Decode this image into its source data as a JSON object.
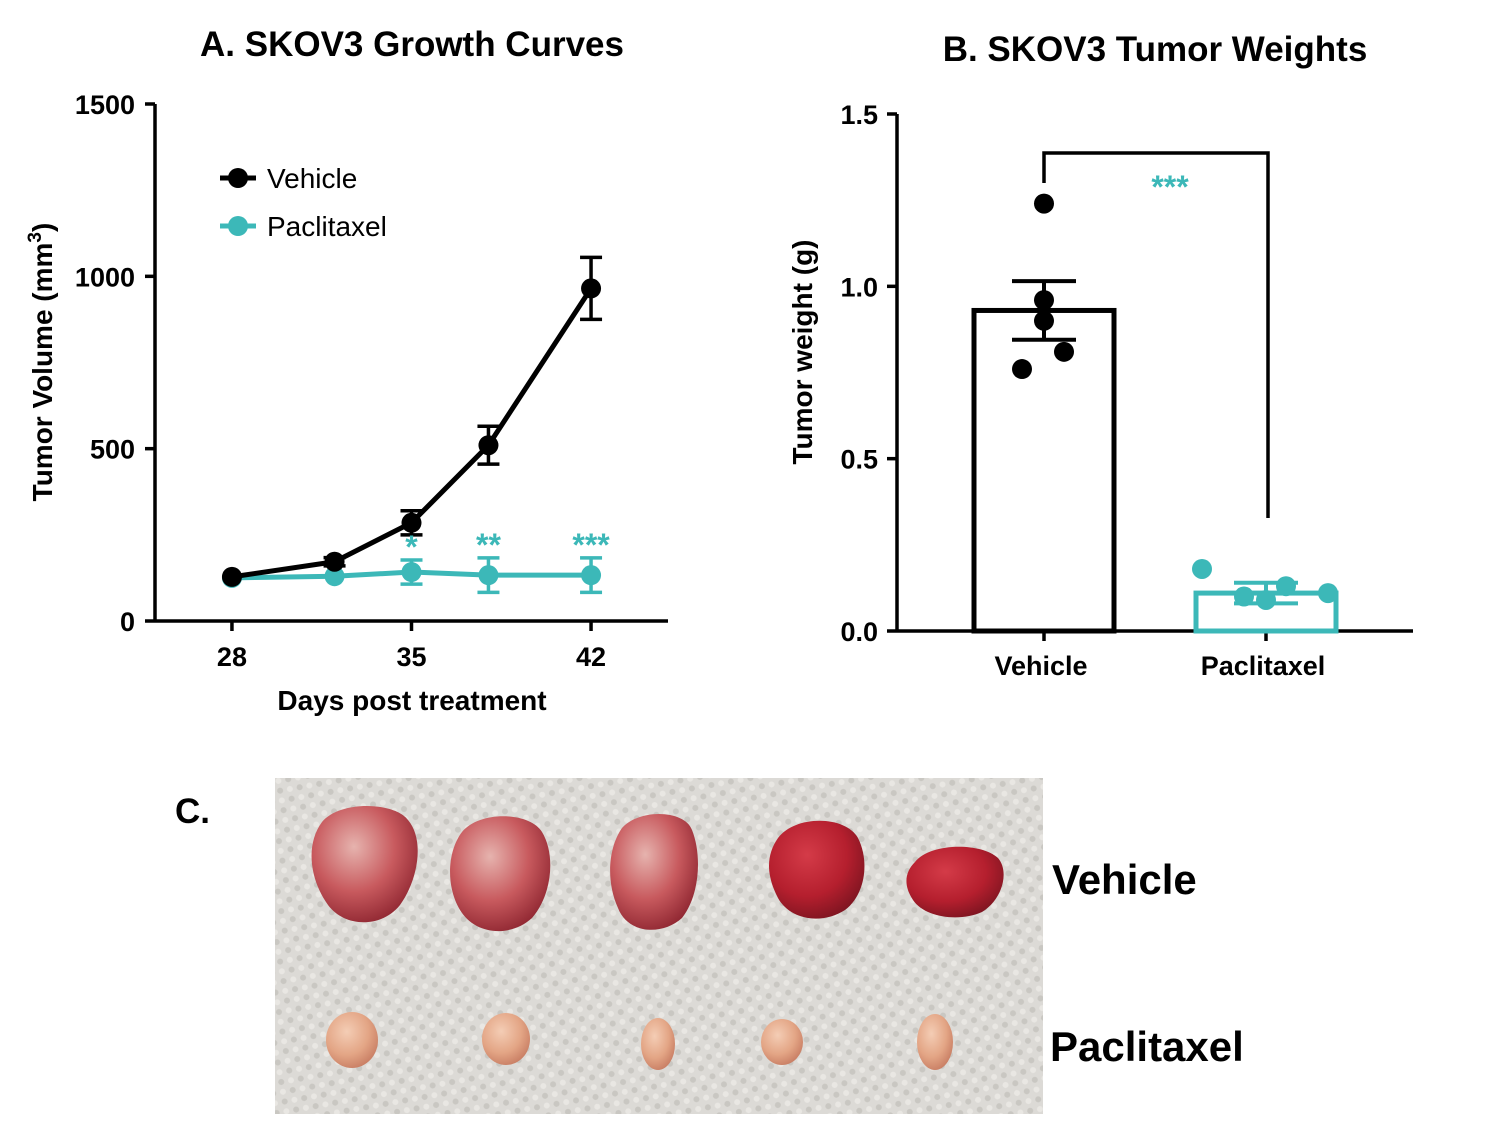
{
  "colors": {
    "vehicle": "#000000",
    "paclitaxel": "#3cb8b8",
    "towel": "#dcdad6",
    "tumor_vehicle": "#b83a44",
    "tumor_paclitaxel": "#e8a588"
  },
  "chart_data": [
    {
      "type": "line",
      "title": "A.  SKOV3 Growth Curves",
      "xlabel": "Days post treatment",
      "ylabel": "Tumor Volume (mm",
      "ylabel_sup": "3",
      "ylabel_close": ")",
      "xlim": [
        25,
        45
      ],
      "ylim": [
        0,
        1500
      ],
      "xticks": [
        28,
        35,
        42
      ],
      "yticks": [
        0,
        500,
        1000,
        1500
      ],
      "legend_position": "top-left",
      "series": [
        {
          "name": "Vehicle",
          "color": "#000000",
          "points": [
            {
              "x": 28,
              "y": 128,
              "err": 8
            },
            {
              "x": 32,
              "y": 172,
              "err": 12
            },
            {
              "x": 35,
              "y": 285,
              "err": 35
            },
            {
              "x": 38,
              "y": 510,
              "err": 55
            },
            {
              "x": 42,
              "y": 965,
              "err": 90
            }
          ]
        },
        {
          "name": "Paclitaxel",
          "color": "#3cb8b8",
          "points": [
            {
              "x": 28,
              "y": 125,
              "err": 6
            },
            {
              "x": 32,
              "y": 130,
              "err": 10
            },
            {
              "x": 35,
              "y": 142,
              "err": 35
            },
            {
              "x": 38,
              "y": 133,
              "err": 50
            },
            {
              "x": 42,
              "y": 133,
              "err": 50
            }
          ]
        }
      ],
      "significance": [
        {
          "x": 35,
          "label": "*"
        },
        {
          "x": 38,
          "label": "**"
        },
        {
          "x": 42,
          "label": "***"
        }
      ]
    },
    {
      "type": "bar",
      "title": "B.  SKOV3 Tumor Weights",
      "ylabel": "Tumor weight (g)",
      "ylim": [
        0,
        1.5
      ],
      "yticks": [
        "0.0",
        "0.5",
        "1.0",
        "1.5"
      ],
      "categories": [
        "Vehicle",
        "Paclitaxel"
      ],
      "values": [
        0.93,
        0.11
      ],
      "errors": [
        0.085,
        0.03
      ],
      "bar_colors": [
        "#000000",
        "#3cb8b8"
      ],
      "points": [
        [
          1.24,
          0.96,
          0.9,
          0.81,
          0.76
        ],
        [
          0.18,
          0.1,
          0.13,
          0.09,
          0.11
        ]
      ],
      "significance": {
        "label": "***",
        "between": [
          "Vehicle",
          "Paclitaxel"
        ]
      }
    }
  ],
  "photo": {
    "panel_label": "C.",
    "rows": [
      {
        "label": "Vehicle",
        "count": 5
      },
      {
        "label": "Paclitaxel",
        "count": 5
      }
    ]
  }
}
